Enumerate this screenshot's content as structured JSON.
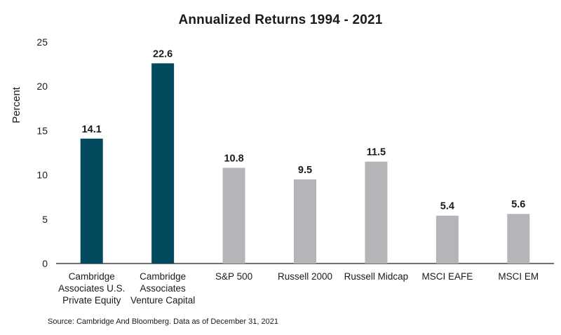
{
  "chart_data": {
    "type": "bar",
    "title": "Annualized Returns 1994 - 2021",
    "ylabel": "Percent",
    "xlabel": "",
    "ylim": [
      0,
      25
    ],
    "yticks": [
      0,
      5,
      10,
      15,
      20,
      25
    ],
    "grid": false,
    "legend": "none",
    "categories": [
      [
        "Cambridge",
        "Associates U.S.",
        "Private Equity"
      ],
      [
        "Cambridge",
        "Associates",
        "Venture Capital"
      ],
      [
        "S&P 500"
      ],
      [
        "Russell 2000"
      ],
      [
        "Russell Midcap"
      ],
      [
        "MSCI EAFE"
      ],
      [
        "MSCI EM"
      ]
    ],
    "values": [
      14.1,
      22.6,
      10.8,
      9.5,
      11.5,
      5.4,
      5.6
    ],
    "value_labels": [
      "14.1",
      "22.6",
      "10.8",
      "9.5",
      "11.5",
      "5.4",
      "5.6"
    ],
    "bar_colors": [
      "#034a5e",
      "#034a5e",
      "#b3b5b8",
      "#b3b5b8",
      "#b3b5b8",
      "#b3b5b8",
      "#b3b5b8"
    ],
    "axis_color": "#1a1a1a"
  },
  "source_note": "Source: Cambridge And Bloomberg. Data as of December 31, 2021"
}
